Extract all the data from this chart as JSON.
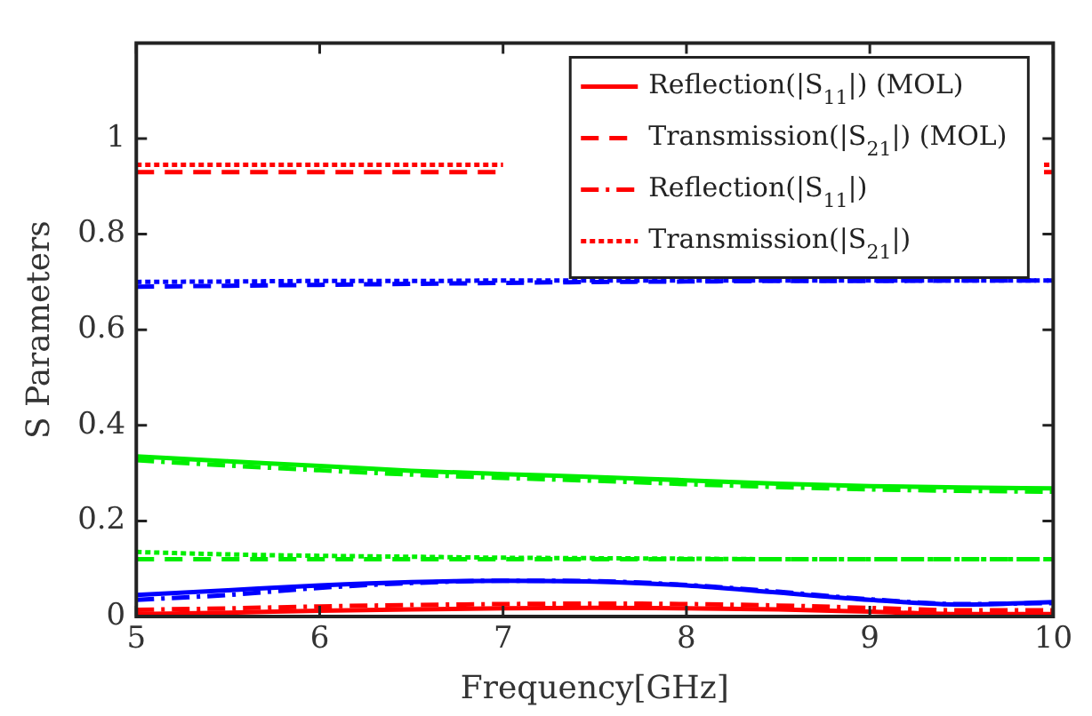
{
  "chart_data": {
    "type": "line",
    "xlabel": "Frequency[GHz]",
    "ylabel": "S Parameters",
    "x": [
      5,
      5.5,
      6,
      6.5,
      7,
      7.5,
      8,
      8.5,
      9,
      9.5,
      10
    ],
    "xlim": [
      5,
      10
    ],
    "xticks": [
      5,
      6,
      7,
      8,
      9,
      10
    ],
    "ylim": [
      0,
      1.2
    ],
    "yticks": [
      0,
      0.2,
      0.4,
      0.6,
      0.8,
      1
    ],
    "grid": false,
    "legend": "top right",
    "marker": "none",
    "series": [
      {
        "name": "Reflection(|S$_{11}$|) (MOL)",
        "color": "#ff0000",
        "line_style": "solid",
        "values": [
          0.005,
          0.008,
          0.012,
          0.015,
          0.017,
          0.018,
          0.017,
          0.015,
          0.01,
          0.005,
          0.005
        ]
      },
      {
        "name": "Transmission(|S$_{21}$|) (MOL)",
        "color": "#ff0000",
        "line_style": "dashed",
        "x": [
          5,
          5.5,
          6,
          6.5,
          7,
          7.5,
          9.95,
          10
        ],
        "values": [
          0.93,
          0.93,
          0.93,
          0.93,
          0.93,
          null,
          0.93,
          0.93
        ]
      },
      {
        "name": "Reflection(|S$_{11}$|)",
        "color": "#ff0000",
        "line_style": "dashdot",
        "values": [
          0.014,
          0.017,
          0.021,
          0.024,
          0.026,
          0.027,
          0.026,
          0.023,
          0.018,
          0.013,
          0.013
        ]
      },
      {
        "name": "Transmission(|S$_{21}$|)",
        "color": "#ff0000",
        "line_style": "dotted",
        "x": [
          5,
          5.5,
          6,
          6.5,
          7,
          7.5,
          9.95,
          10
        ],
        "values": [
          0.945,
          0.945,
          0.945,
          0.945,
          0.945,
          null,
          0.945,
          0.945
        ]
      },
      {
        "color": "#00ee00",
        "line_style": "solid",
        "values": [
          0.335,
          0.325,
          0.315,
          0.305,
          0.298,
          0.292,
          0.285,
          0.278,
          0.273,
          0.27,
          0.268
        ]
      },
      {
        "color": "#00ee00",
        "line_style": "dashed",
        "values": [
          0.12,
          0.12,
          0.12,
          0.12,
          0.12,
          0.12,
          0.12,
          0.12,
          0.12,
          0.12,
          0.12
        ]
      },
      {
        "color": "#00ee00",
        "line_style": "dashdot",
        "values": [
          0.327,
          0.316,
          0.306,
          0.297,
          0.29,
          0.284,
          0.277,
          0.271,
          0.266,
          0.263,
          0.261
        ]
      },
      {
        "color": "#00ee00",
        "line_style": "dotted",
        "values": [
          0.135,
          0.13,
          0.127,
          0.125,
          0.123,
          0.122,
          0.121,
          0.12,
          0.12,
          0.12,
          0.12
        ]
      },
      {
        "color": "#0000ff",
        "line_style": "solid",
        "values": [
          0.045,
          0.055,
          0.065,
          0.072,
          0.075,
          0.073,
          0.065,
          0.05,
          0.035,
          0.025,
          0.03
        ]
      },
      {
        "color": "#0000ff",
        "line_style": "dashed",
        "values": [
          0.69,
          0.692,
          0.694,
          0.696,
          0.698,
          0.7,
          0.701,
          0.702,
          0.702,
          0.703,
          0.703
        ]
      },
      {
        "color": "#0000ff",
        "line_style": "dashdot",
        "values": [
          0.035,
          0.045,
          0.06,
          0.07,
          0.075,
          0.074,
          0.066,
          0.052,
          0.036,
          0.026,
          0.028
        ]
      },
      {
        "color": "#0000ff",
        "line_style": "dotted",
        "values": [
          0.7,
          0.701,
          0.702,
          0.702,
          0.703,
          0.703,
          0.703,
          0.703,
          0.703,
          0.703,
          0.703
        ]
      }
    ]
  }
}
